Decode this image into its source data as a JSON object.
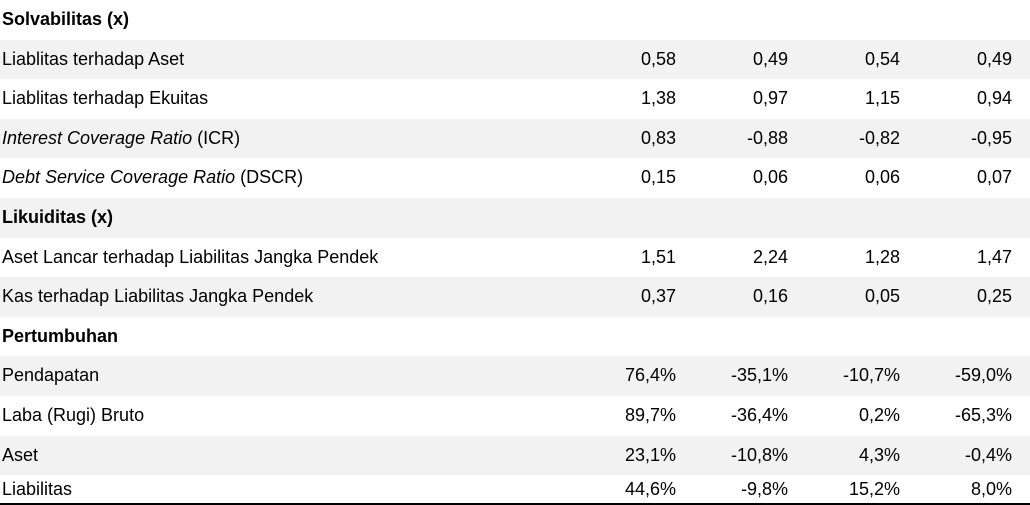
{
  "sections": {
    "solvabilitas": {
      "title": "Solvabilitas (x)",
      "rows": [
        {
          "label": "Liablitas terhadap Aset",
          "values": [
            "0,58",
            "0,49",
            "0,54",
            "0,49"
          ]
        },
        {
          "label": "Liablitas terhadap Ekuitas",
          "values": [
            "1,38",
            "0,97",
            "1,15",
            "0,94"
          ]
        },
        {
          "label_italic": "Interest Coverage Ratio",
          "label_suffix": " (ICR)",
          "values": [
            "0,83",
            "-0,88",
            "-0,82",
            "-0,95"
          ]
        },
        {
          "label_italic": "Debt Service Coverage Ratio",
          "label_suffix": " (DSCR)",
          "values": [
            "0,15",
            "0,06",
            "0,06",
            "0,07"
          ]
        }
      ]
    },
    "likuiditas": {
      "title": "Likuiditas (x)",
      "rows": [
        {
          "label": "Aset Lancar terhadap Liabilitas Jangka Pendek",
          "values": [
            "1,51",
            "2,24",
            "1,28",
            "1,47"
          ]
        },
        {
          "label": "Kas terhadap Liabilitas Jangka Pendek",
          "values": [
            "0,37",
            "0,16",
            "0,05",
            "0,25"
          ]
        }
      ]
    },
    "pertumbuhan": {
      "title": "Pertumbuhan",
      "rows": [
        {
          "label": "Pendapatan",
          "values": [
            "76,4%",
            "-35,1%",
            "-10,7%",
            "-59,0%"
          ]
        },
        {
          "label": "Laba (Rugi) Bruto",
          "values": [
            "89,7%",
            "-36,4%",
            "0,2%",
            "-65,3%"
          ]
        },
        {
          "label": "Aset",
          "values": [
            "23,1%",
            "-10,8%",
            "4,3%",
            "-0,4%"
          ]
        },
        {
          "label": "Liabilitas",
          "values": [
            "44,6%",
            "-9,8%",
            "15,2%",
            "8,0%"
          ]
        }
      ]
    }
  }
}
